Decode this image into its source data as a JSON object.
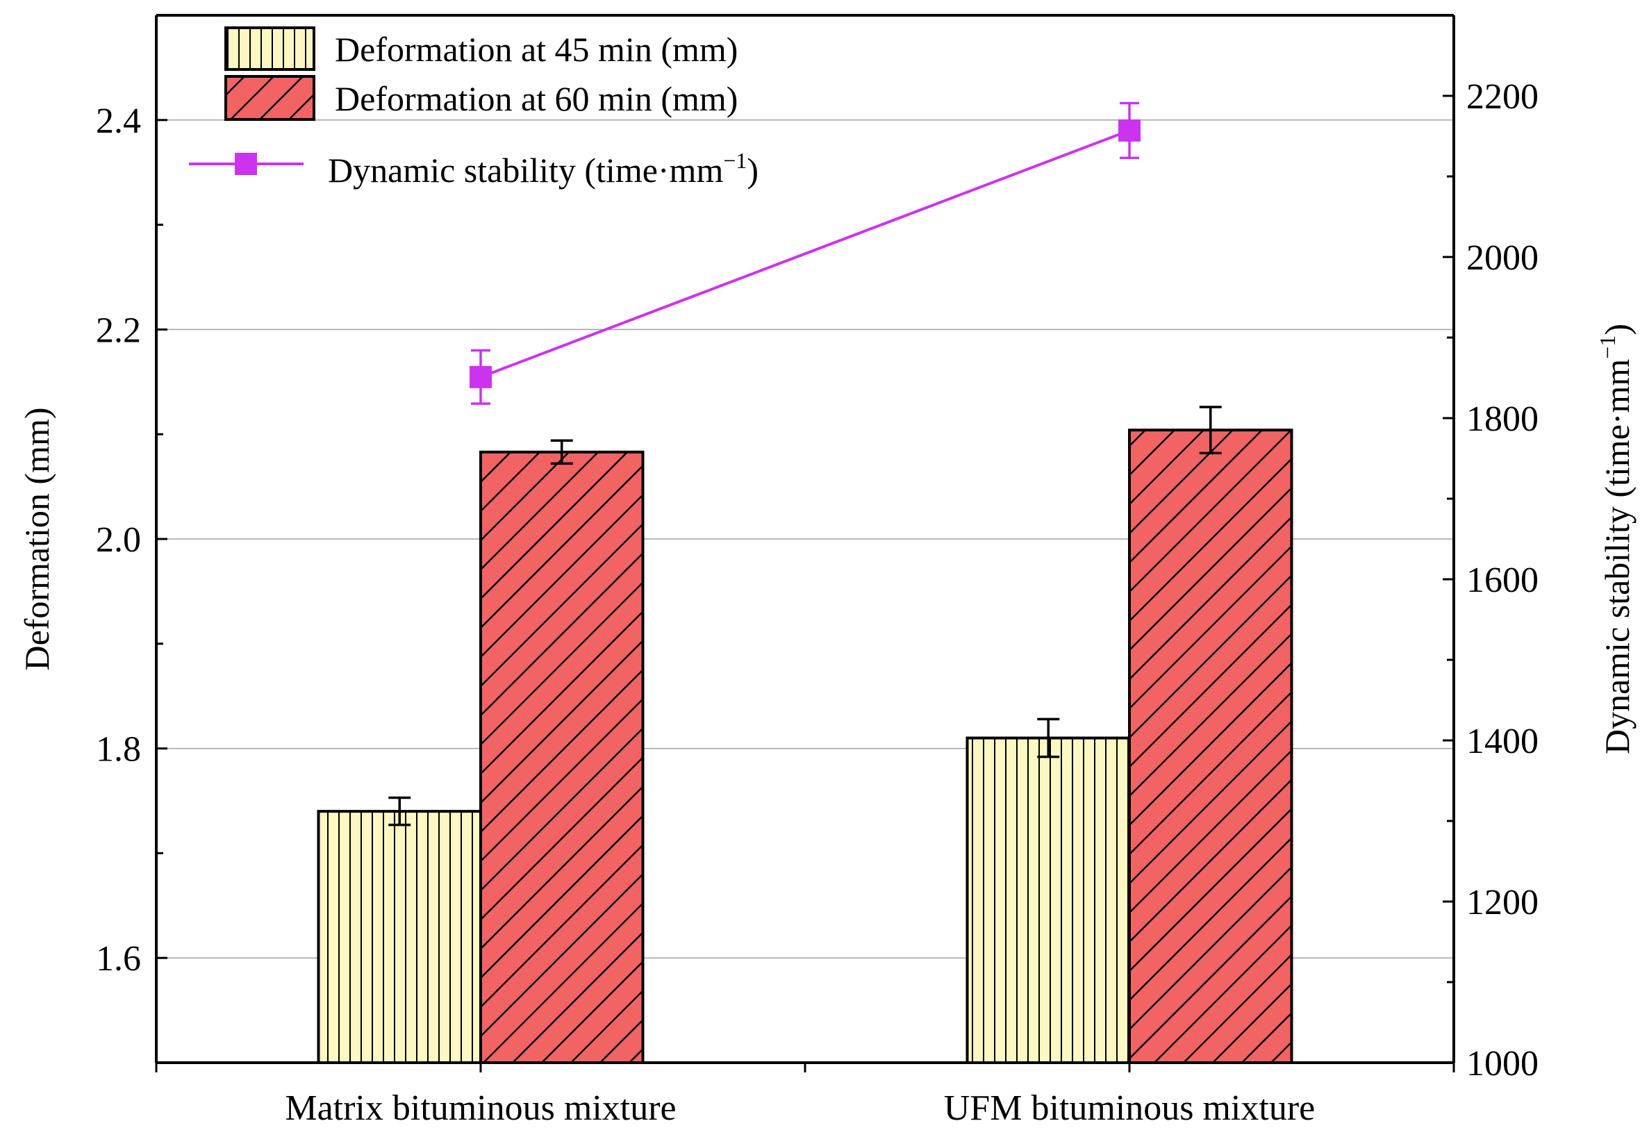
{
  "chart_data": {
    "type": "bar",
    "categories": [
      "Matrix bituminous  mixture",
      "UFM bituminous mixture"
    ],
    "series": [
      {
        "name": "Deformation at 45 min (mm)",
        "axis": "left",
        "kind": "bar",
        "pattern": "vertical-lines",
        "color": "#fdf8c3",
        "values": [
          1.74,
          1.81
        ],
        "errors": [
          0.013,
          0.018
        ]
      },
      {
        "name": "Deformation at 60 min (mm)",
        "axis": "left",
        "kind": "bar",
        "pattern": "diagonal-lines",
        "color": "#f26464",
        "values": [
          2.083,
          2.104
        ],
        "errors": [
          0.011,
          0.022
        ]
      },
      {
        "name": "Dynamic stability (time·mm",
        "name_sup": "−1",
        "name_suffix": ")",
        "axis": "right",
        "kind": "line",
        "marker": "square",
        "color": "#cc33ee",
        "values": [
          1851,
          2157
        ],
        "errors": [
          33,
          34
        ]
      }
    ],
    "left_axis": {
      "label": "Deformation (mm)",
      "ylim": [
        1.5,
        2.5
      ],
      "ticks": [
        1.6,
        1.8,
        2.0,
        2.2,
        2.4
      ],
      "tick_labels": [
        "1.6",
        "1.8",
        "2.0",
        "2.2",
        "2.4"
      ]
    },
    "right_axis": {
      "label": "Dynamic stability (time·mm",
      "label_sup": "−1",
      "label_suffix": ")",
      "ylim": [
        1000,
        2300
      ],
      "ticks": [
        1000,
        1200,
        1400,
        1600,
        1800,
        2000,
        2200
      ],
      "tick_labels": [
        "1000",
        "1200",
        "1400",
        "1600",
        "1800",
        "2000",
        "2200"
      ]
    },
    "grid": true,
    "legend_position": "top-left"
  }
}
